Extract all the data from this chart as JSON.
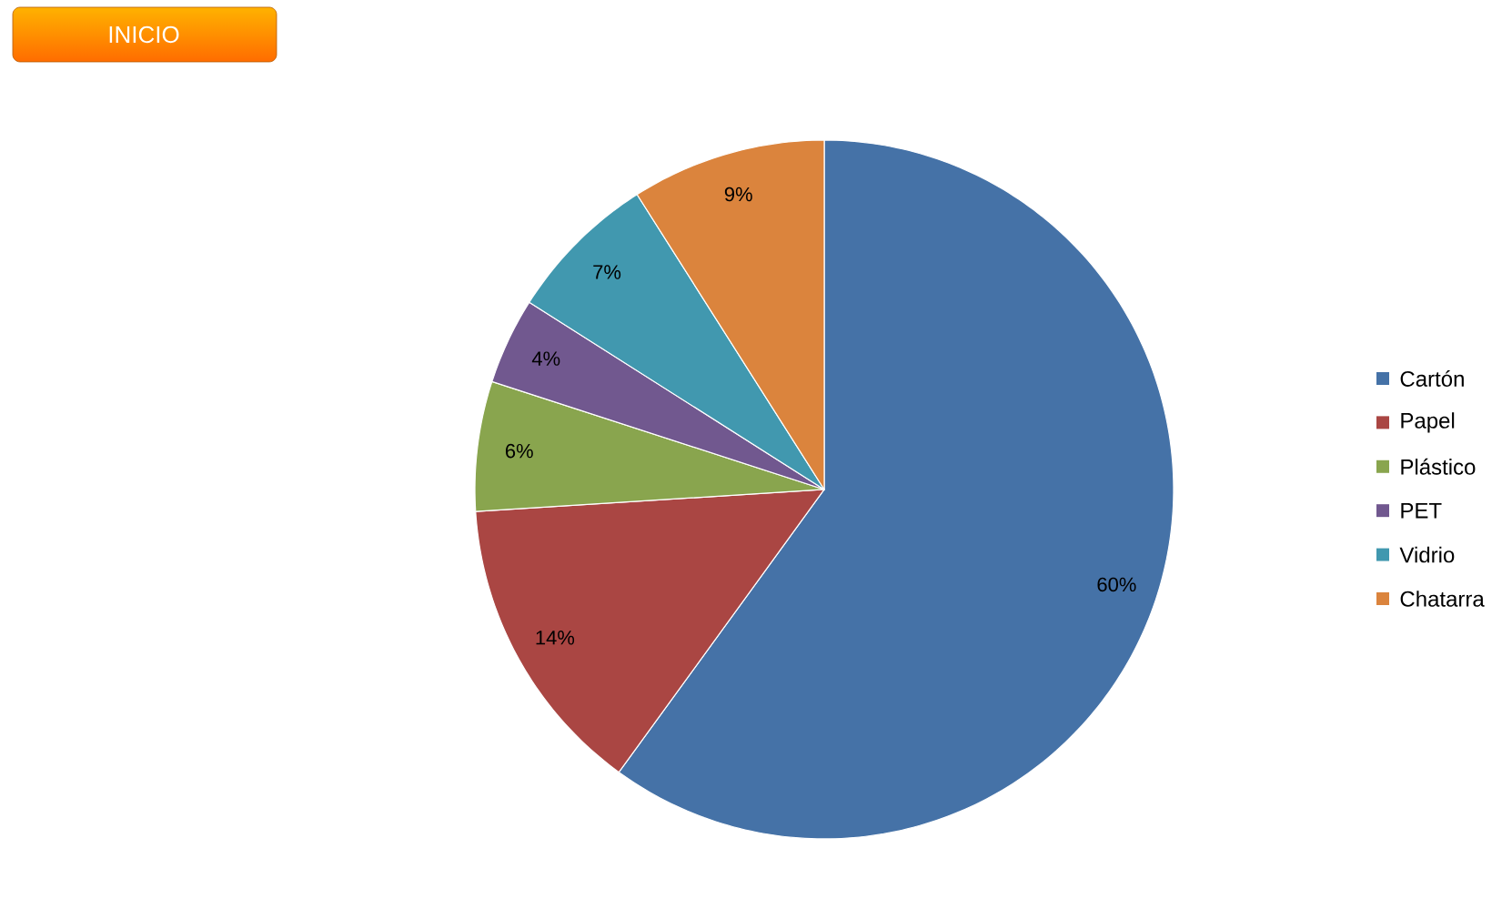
{
  "chart_data": {
    "type": "pie",
    "categories": [
      "Cartón",
      "Papel",
      "Plástico",
      "PET",
      "Vidrio",
      "Chatarra"
    ],
    "values": [
      60,
      14,
      6,
      4,
      7,
      9
    ],
    "colors": [
      "#4572a7",
      "#aa4643",
      "#89a54e",
      "#71588f",
      "#4198af",
      "#db843d"
    ],
    "value_labels": [
      "60%",
      "14%",
      "6%",
      "4%",
      "7%",
      "9%"
    ],
    "legend": "right",
    "annotations": [
      "INICIO"
    ]
  }
}
